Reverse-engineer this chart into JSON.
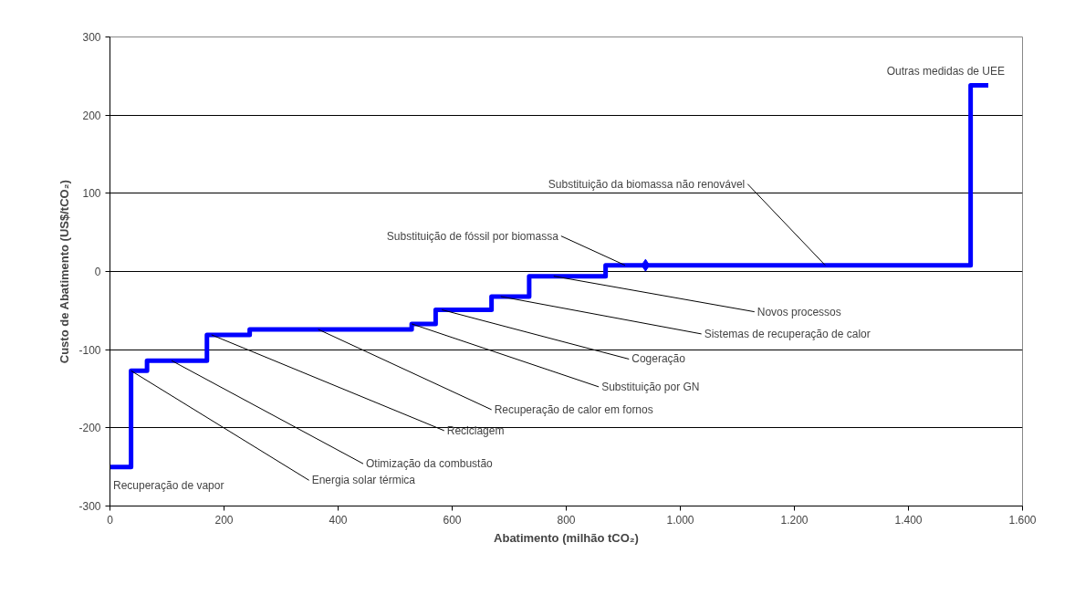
{
  "chart_data": {
    "type": "step",
    "xlabel": "Abatimento (milhão tCO₂)",
    "ylabel": "Custo de Abatimento (US$/tCO₂)",
    "series": [
      {
        "color": "#0000ff",
        "x": [
          0,
          37,
          65,
          170,
          245,
          529,
          571,
          669,
          735,
          869,
          1509,
          1540
        ],
        "values": [
          -250,
          -127,
          -114,
          -81,
          -74,
          -67,
          -49,
          -32,
          -6,
          8,
          238,
          238
        ]
      },
      {
        "type": "scatter",
        "color": "#0000ff",
        "marker": "diamond",
        "x": [
          939
        ],
        "values": [
          8
        ]
      }
    ],
    "xlim": [
      0,
      1600
    ],
    "ylim": [
      -300,
      300
    ],
    "xticks": [
      0,
      200,
      400,
      600,
      800,
      {
        "value": 1000,
        "label": "1.000"
      },
      {
        "value": 1200,
        "label": "1.200"
      },
      {
        "value": 1400,
        "label": "1.400"
      },
      {
        "value": 1600,
        "label": "1.600"
      }
    ],
    "yticks": [
      -300,
      -200,
      -100,
      0,
      100,
      200,
      300
    ],
    "grid": "y",
    "annotations": [
      {
        "text": "Recuperação de vapor",
        "x": 20,
        "y": -250
      },
      {
        "text": "Energia solar térmica",
        "x": 37,
        "y": -127
      },
      {
        "text": "Otimização da combustão",
        "x": 108,
        "y": -114
      },
      {
        "text": "Reciclagem",
        "x": 178,
        "y": -81
      },
      {
        "text": "Recuperação de calor em fornos",
        "x": 365,
        "y": -74
      },
      {
        "text": "Substituição por GN",
        "x": 529,
        "y": -67
      },
      {
        "text": "Cogeração",
        "x": 582,
        "y": -49
      },
      {
        "text": "Sistemas de recuperação de calor",
        "x": 685,
        "y": -32
      },
      {
        "text": "Novos processos",
        "x": 778,
        "y": -6
      },
      {
        "text": "Substituição de fóssil por biomassa",
        "x": 903,
        "y": 8
      },
      {
        "text": "Substituição da biomassa não renovável",
        "x": 1254,
        "y": 8
      },
      {
        "text": "Outras medidas de UEE",
        "x": 1509,
        "y": 238
      }
    ]
  }
}
